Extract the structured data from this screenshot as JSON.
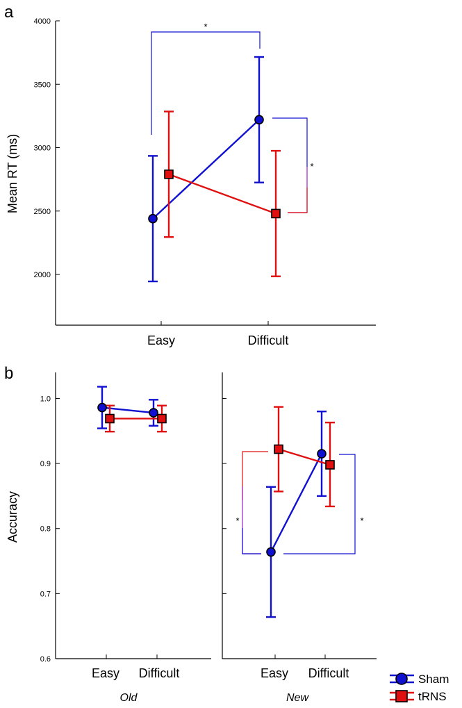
{
  "colors": {
    "sham": "#1010d0",
    "trns": "#e01010",
    "bracket_magenta": "#a020c0"
  },
  "chart_data": [
    {
      "panel": "a",
      "type": "line",
      "categories": [
        "Easy",
        "Difficult"
      ],
      "ylabel": "Mean RT (ms)",
      "ylim": [
        1600,
        4000
      ],
      "yticks": [
        2000,
        2500,
        3000,
        3500,
        4000
      ],
      "series": [
        {
          "name": "Sham",
          "marker": "circle",
          "values": [
            2440,
            3220
          ],
          "err": [
            [
              1945,
              2935
            ],
            [
              2725,
              3715
            ]
          ]
        },
        {
          "name": "tRNS",
          "marker": "square",
          "values": [
            2790,
            2480
          ],
          "err": [
            [
              2295,
              3285
            ],
            [
              1985,
              2975
            ]
          ]
        }
      ],
      "annotations": [
        "*",
        "*"
      ]
    },
    {
      "panel": "b",
      "facet": "Old",
      "type": "line",
      "categories": [
        "Easy",
        "Difficult"
      ],
      "ylabel": "Accuracy",
      "ylim": [
        0.6,
        1.04
      ],
      "yticks": [
        "0.6",
        "0.7",
        "0.8",
        "0.9",
        "1.0"
      ],
      "series": [
        {
          "name": "Sham",
          "marker": "circle",
          "values": [
            0.986,
            0.978
          ],
          "err": [
            [
              0.954,
              1.018
            ],
            [
              0.958,
              0.998
            ]
          ]
        },
        {
          "name": "tRNS",
          "marker": "square",
          "values": [
            0.969,
            0.969
          ],
          "err": [
            [
              0.949,
              0.989
            ],
            [
              0.949,
              0.989
            ]
          ]
        }
      ]
    },
    {
      "panel": "b",
      "facet": "New",
      "type": "line",
      "categories": [
        "Easy",
        "Difficult"
      ],
      "ylim": [
        0.6,
        1.04
      ],
      "series": [
        {
          "name": "Sham",
          "marker": "circle",
          "values": [
            0.764,
            0.915
          ],
          "err": [
            [
              0.664,
              0.864
            ],
            [
              0.85,
              0.98
            ]
          ]
        },
        {
          "name": "tRNS",
          "marker": "square",
          "values": [
            0.922,
            0.898
          ],
          "err": [
            [
              0.857,
              0.987
            ],
            [
              0.834,
              0.963
            ]
          ]
        }
      ],
      "annotations": [
        "*",
        "*"
      ]
    }
  ],
  "text": {
    "panel_a": "a",
    "panel_b": "b",
    "old_label": "Old",
    "new_label": "New",
    "star": "*"
  },
  "legend": [
    {
      "name": "Sham",
      "marker": "circle"
    },
    {
      "name": "tRNS",
      "marker": "square"
    }
  ]
}
